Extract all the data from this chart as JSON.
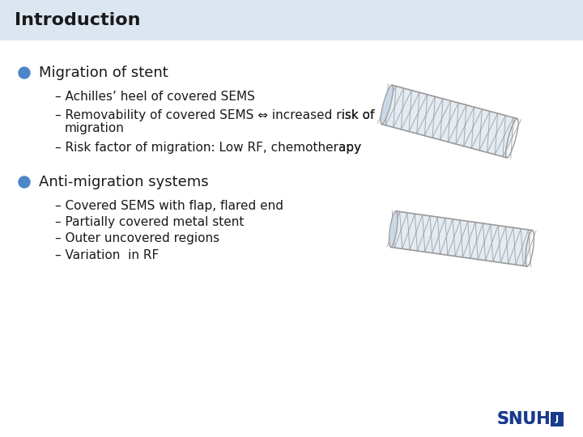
{
  "title": "Introduction",
  "title_bg_color": "#dce6f1",
  "slide_bg_color": "#ffffff",
  "bullet_color": "#4a86c8",
  "text_color": "#1a1a1a",
  "title_fontsize": 16,
  "bullet_fontsize": 13,
  "sub_fontsize": 11,
  "bullet1": "Migration of stent",
  "bullet2": "Anti-migration systems",
  "sub1_1": "– Achilles’ heel of covered SEMS",
  "sub1_2a": "– Removability of covered SEMS ⇔ increased risk of",
  "sub1_2b": "   migration",
  "sub1_3": "– Risk factor of migration: Low RF, chemotherapy",
  "sub2_1": "– Covered SEMS with flap, flared end",
  "sub2_2": "– Partially covered metal stent",
  "sub2_3": "– Outer uncovered regions",
  "sub2_4": "– Variation  in RF",
  "logo_text": "SNUH",
  "logo_color": "#1a3a8c",
  "stent_color": "#999999",
  "stent_fill": "#c8d8e8"
}
